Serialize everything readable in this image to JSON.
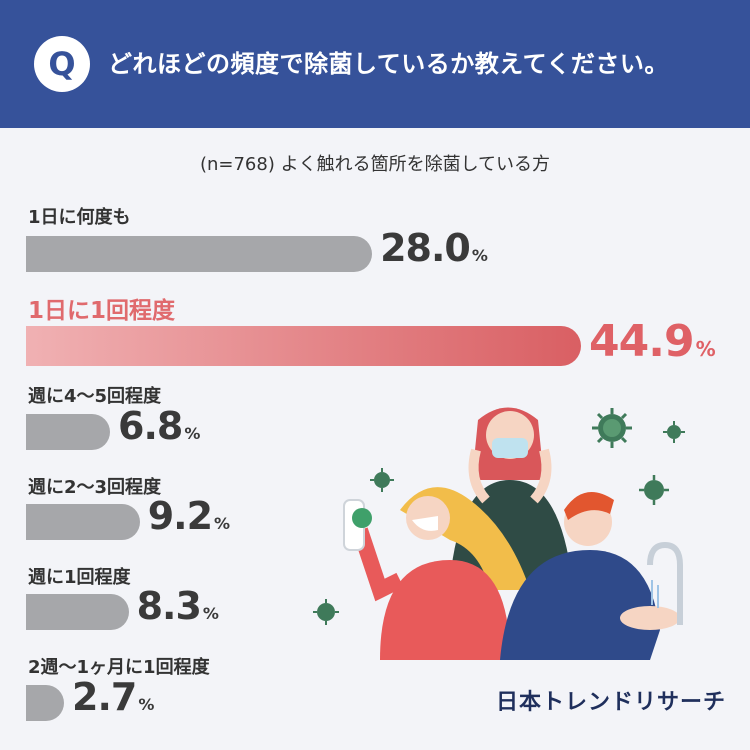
{
  "header": {
    "badge": "Q",
    "question": "どれほどの頻度で除菌しているか教えてください。"
  },
  "colors": {
    "header_bg": "#36529a",
    "bar_default": "#a6a7aa",
    "bar_highlight_start": "#f0b1b3",
    "bar_highlight_end": "#d95f63",
    "highlight_text": "#df6166"
  },
  "chart_data": {
    "type": "bar",
    "orientation": "horizontal",
    "title": "(n=768) よく触れる箇所を除菌している方",
    "categories": [
      "1日に何度も",
      "1日に1回程度",
      "週に4〜5回程度",
      "週に2〜3回程度",
      "週に1回程度",
      "2週〜1ヶ月に1回程度"
    ],
    "values": [
      28.0,
      44.9,
      6.8,
      9.2,
      8.3,
      2.7
    ],
    "value_labels": [
      "28.0",
      "44.9",
      "6.8",
      "9.2",
      "8.3",
      "2.7"
    ],
    "unit": "%",
    "highlight_index": 1,
    "xlim": [
      0,
      50
    ]
  },
  "brand": {
    "logo_text": "日本トレンドリサーチ"
  }
}
